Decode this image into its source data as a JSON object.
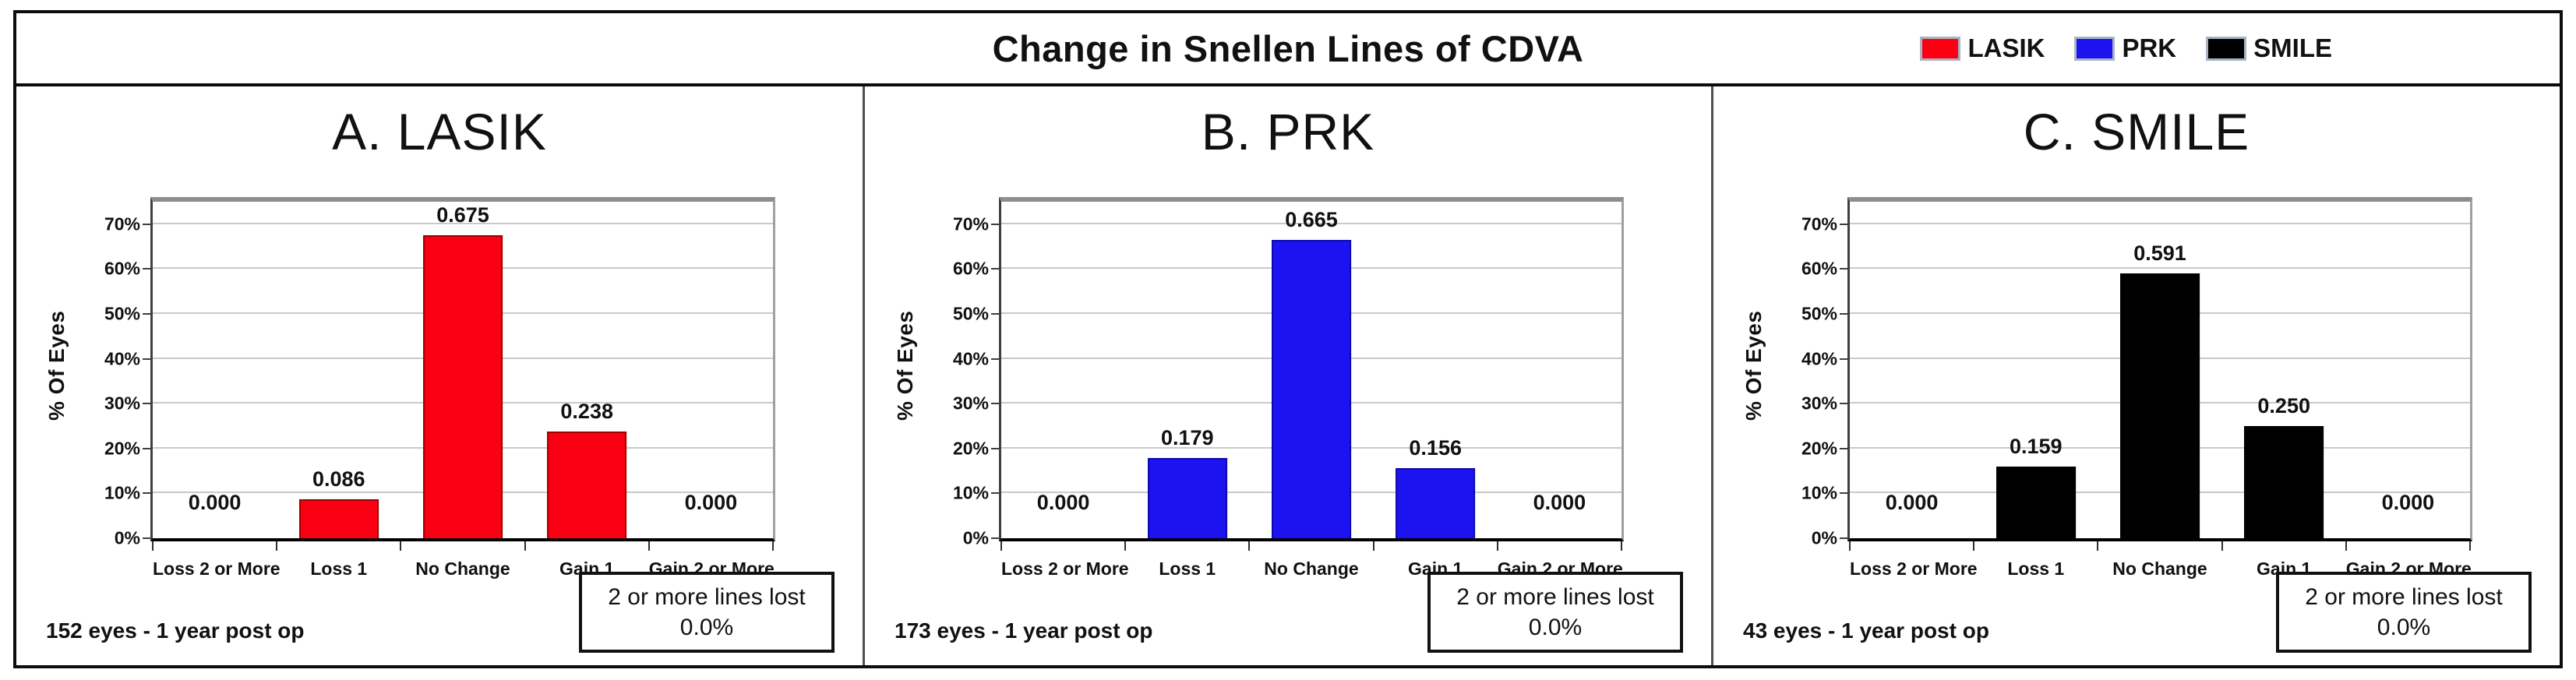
{
  "header": {
    "title": "Change in Snellen Lines of CDVA"
  },
  "legend": [
    {
      "label": "LASIK",
      "color": "#fb0012"
    },
    {
      "label": "PRK",
      "color": "#1d12f0"
    },
    {
      "label": "SMILE",
      "color": "#000000"
    }
  ],
  "colors": {
    "legend_swatch_border": "#a8b2c1",
    "gridline": "#c9c9c9",
    "outer_border": "#0d0d0d"
  },
  "chart_data": [
    {
      "type": "bar",
      "title": "A. LASIK",
      "series_name": "LASIK",
      "bar_color": "#fb0012",
      "bar_border": "#9e0000",
      "categories": [
        "Loss 2 or More",
        "Loss 1",
        "No Change",
        "Gain 1",
        "Gain 2 or More"
      ],
      "values": [
        0.0,
        0.086,
        0.675,
        0.238,
        0.0
      ],
      "value_labels": [
        "0.000",
        "0.086",
        "0.675",
        "0.238",
        "0.000"
      ],
      "xlabel": "",
      "ylabel": "% Of Eyes",
      "ylim": [
        0,
        0.75
      ],
      "ytick_labels": [
        "0%",
        "10%",
        "20%",
        "30%",
        "40%",
        "50%",
        "60%",
        "70%"
      ],
      "grid": "horizontal",
      "footer": "152 eyes - 1 year post op",
      "annotation": {
        "line1": "2 or more lines lost",
        "line2": "0.0%"
      }
    },
    {
      "type": "bar",
      "title": "B. PRK",
      "series_name": "PRK",
      "bar_color": "#1d12f0",
      "bar_border": "#0b0bb0",
      "categories": [
        "Loss 2 or More",
        "Loss 1",
        "No Change",
        "Gain 1",
        "Gain 2 or More"
      ],
      "values": [
        0.0,
        0.179,
        0.665,
        0.156,
        0.0
      ],
      "value_labels": [
        "0.000",
        "0.179",
        "0.665",
        "0.156",
        "0.000"
      ],
      "xlabel": "",
      "ylabel": "% Of Eyes",
      "ylim": [
        0,
        0.75
      ],
      "ytick_labels": [
        "0%",
        "10%",
        "20%",
        "30%",
        "40%",
        "50%",
        "60%",
        "70%"
      ],
      "grid": "horizontal",
      "footer": "173 eyes - 1 year post op",
      "annotation": {
        "line1": "2 or more lines lost",
        "line2": "0.0%"
      }
    },
    {
      "type": "bar",
      "title": "C. SMILE",
      "series_name": "SMILE",
      "bar_color": "#000000",
      "bar_border": "#000000",
      "categories": [
        "Loss 2 or More",
        "Loss 1",
        "No Change",
        "Gain 1",
        "Gain 2 or More"
      ],
      "values": [
        0.0,
        0.159,
        0.591,
        0.25,
        0.0
      ],
      "value_labels": [
        "0.000",
        "0.159",
        "0.591",
        "0.250",
        "0.000"
      ],
      "xlabel": "",
      "ylabel": "% Of Eyes",
      "ylim": [
        0,
        0.75
      ],
      "ytick_labels": [
        "0%",
        "10%",
        "20%",
        "30%",
        "40%",
        "50%",
        "60%",
        "70%"
      ],
      "grid": "horizontal",
      "footer": "43 eyes - 1 year post op",
      "annotation": {
        "line1": "2 or more lines lost",
        "line2": "0.0%"
      }
    }
  ]
}
